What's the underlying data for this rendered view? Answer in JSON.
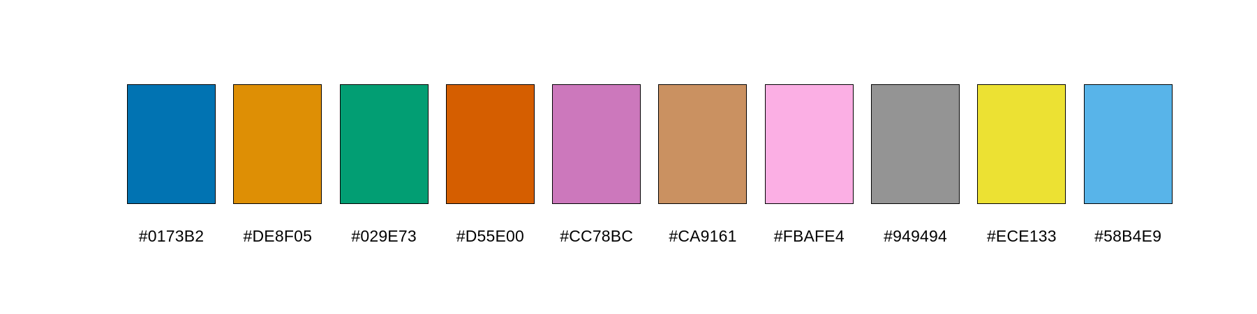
{
  "swatches": [
    {
      "label": "#0173B2",
      "color": "#0173B2"
    },
    {
      "label": "#DE8F05",
      "color": "#DE8F05"
    },
    {
      "label": "#029E73",
      "color": "#029E73"
    },
    {
      "label": "#D55E00",
      "color": "#D55E00"
    },
    {
      "label": "#CC78BC",
      "color": "#CC78BC"
    },
    {
      "label": "#CA9161",
      "color": "#CA9161"
    },
    {
      "label": "#FBAFE4",
      "color": "#FBAFE4"
    },
    {
      "label": "#949494",
      "color": "#949494"
    },
    {
      "label": "#ECE133",
      "color": "#ECE133"
    },
    {
      "label": "#58B4E9",
      "color": "#58B4E9"
    }
  ]
}
